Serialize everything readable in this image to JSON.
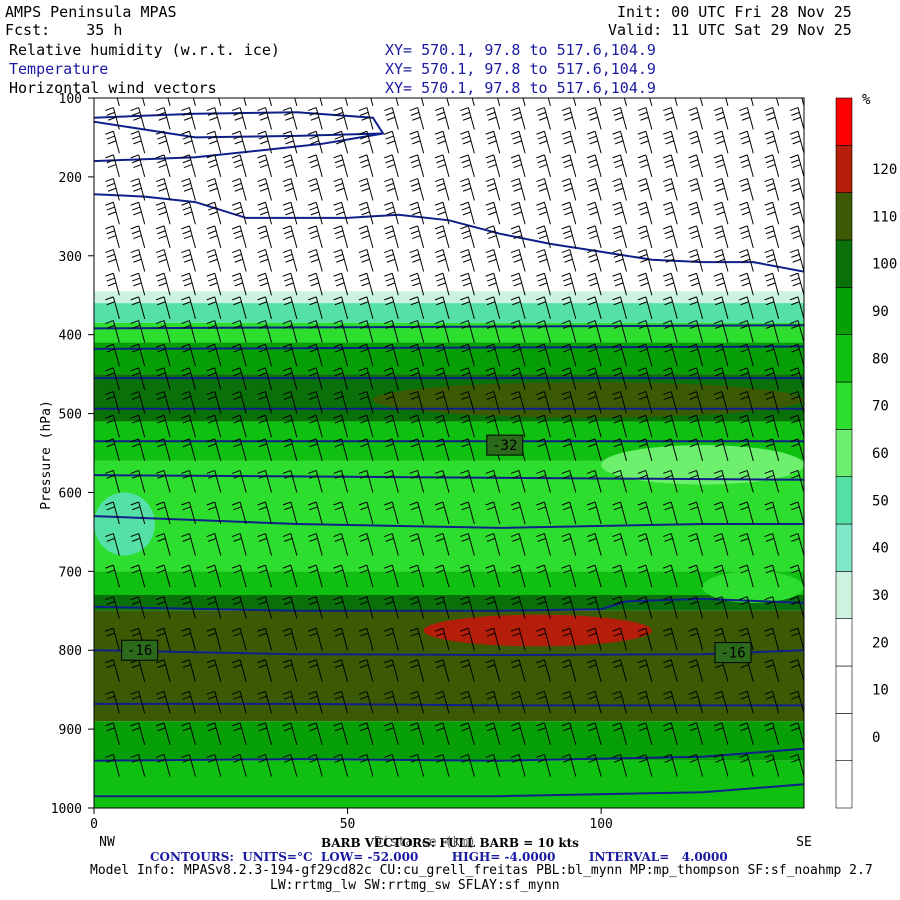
{
  "header": {
    "model_name": "AMPS Peninsula MPAS",
    "fcst": "Fcst:    35 h",
    "init": "Init: 00 UTC Fri 28 Nov 25",
    "valid": "Valid: 11 UTC Sat 29 Nov 25",
    "fields": [
      {
        "name": "Relative humidity (w.r.t. ice)",
        "xy": "XY= 570.1, 97.8 to 517.6,104.9"
      },
      {
        "name": "Temperature",
        "xy": "XY= 570.1, 97.8 to 517.6,104.9"
      },
      {
        "name": "Horizontal wind vectors",
        "xy": "XY= 570.1, 97.8 to 517.6,104.9"
      }
    ]
  },
  "colors": {
    "contour": "#10208a",
    "rh_levels": [
      "#ffffff",
      "#ffffff",
      "#ffffff",
      "#ffffff",
      "#ccf2e0",
      "#7ee8c8",
      "#55e0a8",
      "#6ef06e",
      "#2ede2e",
      "#10c010",
      "#06a006",
      "#0a700a",
      "#3c5a04",
      "#b41e0a",
      "#ff0000"
    ]
  },
  "chart_data": {
    "type": "heatmap",
    "xlabel": "Distance (km)",
    "ylabel": "Pressure (hPa)",
    "xlim": [
      0,
      140
    ],
    "ylim": [
      1000,
      100
    ],
    "x_ticks": [
      0,
      50,
      100
    ],
    "y_ticks": [
      100,
      200,
      300,
      400,
      500,
      600,
      700,
      800,
      900,
      1000
    ],
    "x_end_labels": {
      "left": "NW",
      "right": "SE"
    },
    "colorbar": {
      "unit": "%",
      "labels": [
        0,
        10,
        20,
        30,
        40,
        50,
        60,
        70,
        80,
        90,
        100,
        110,
        120
      ],
      "bounds": [
        -10,
        0,
        10,
        20,
        30,
        40,
        50,
        60,
        70,
        80,
        90,
        100,
        110,
        120,
        130
      ]
    },
    "rh_bands": [
      {
        "p_top": 100,
        "p_bottom": 345,
        "value": 0
      },
      {
        "p_top": 345,
        "p_bottom": 360,
        "value": 35
      },
      {
        "p_top": 360,
        "p_bottom": 385,
        "value": 55
      },
      {
        "p_top": 385,
        "p_bottom": 410,
        "value": 75
      },
      {
        "p_top": 410,
        "p_bottom": 450,
        "value": 95
      },
      {
        "p_top": 450,
        "p_bottom": 510,
        "value": 105
      },
      {
        "p_top": 510,
        "p_bottom": 560,
        "value": 85
      },
      {
        "p_top": 560,
        "p_bottom": 640,
        "value": 75
      },
      {
        "p_top": 640,
        "p_bottom": 700,
        "value": 72
      },
      {
        "p_top": 700,
        "p_bottom": 730,
        "value": 85
      },
      {
        "p_top": 730,
        "p_bottom": 750,
        "value": 105
      },
      {
        "p_top": 750,
        "p_bottom": 890,
        "value": 115
      },
      {
        "p_top": 890,
        "p_bottom": 940,
        "value": 95
      },
      {
        "p_top": 940,
        "p_bottom": 1000,
        "value": 85
      }
    ],
    "rh_patches": [
      {
        "x": [
          55,
          140
        ],
        "p": [
          460,
          505
        ],
        "value": 115
      },
      {
        "x": [
          65,
          110
        ],
        "p": [
          755,
          795
        ],
        "value": 125
      },
      {
        "x": [
          0,
          12
        ],
        "p": [
          600,
          680
        ],
        "value": 55
      },
      {
        "x": [
          100,
          140
        ],
        "p": [
          540,
          590
        ],
        "value": 65
      },
      {
        "x": [
          120,
          140
        ],
        "p": [
          700,
          740
        ],
        "value": 75
      }
    ],
    "temperature_contours": [
      {
        "x": [
          0,
          20,
          40,
          55,
          57,
          40,
          20,
          0
        ],
        "p": [
          125,
          120,
          118,
          125,
          145,
          148,
          150,
          130
        ]
      },
      {
        "x": [
          0,
          20,
          35,
          45,
          57
        ],
        "p": [
          180,
          175,
          165,
          158,
          145
        ]
      },
      {
        "x": [
          0,
          10,
          20,
          30,
          40,
          50,
          60,
          70,
          80,
          90,
          100,
          110,
          120,
          130,
          140
        ],
        "p": [
          222,
          225,
          232,
          252,
          252,
          252,
          248,
          255,
          272,
          285,
          295,
          305,
          308,
          308,
          320
        ]
      },
      {
        "x": [
          0,
          140
        ],
        "p": [
          392,
          388
        ]
      },
      {
        "x": [
          0,
          140
        ],
        "p": [
          418,
          415
        ]
      },
      {
        "x": [
          0,
          140
        ],
        "p": [
          455,
          455
        ]
      },
      {
        "x": [
          0,
          140
        ],
        "p": [
          494,
          494
        ]
      },
      {
        "x": [
          0,
          140
        ],
        "p": [
          535,
          535
        ]
      },
      {
        "x": [
          0,
          140
        ],
        "p": [
          578,
          584
        ]
      },
      {
        "x": [
          0,
          40,
          80,
          120,
          140
        ],
        "p": [
          630,
          640,
          645,
          640,
          640
        ]
      },
      {
        "x": [
          0,
          40,
          80,
          100,
          105,
          120,
          140
        ],
        "p": [
          745,
          750,
          750,
          748,
          738,
          735,
          740
        ]
      },
      {
        "x": [
          0,
          40,
          80,
          120,
          140
        ],
        "p": [
          800,
          805,
          806,
          805,
          800
        ]
      },
      {
        "x": [
          0,
          40,
          80,
          120,
          140
        ],
        "p": [
          868,
          868,
          870,
          870,
          870
        ]
      },
      {
        "x": [
          0,
          40,
          80,
          120,
          140
        ],
        "p": [
          940,
          938,
          940,
          935,
          925
        ]
      },
      {
        "x": [
          0,
          40,
          80,
          120,
          140
        ],
        "p": [
          985,
          985,
          985,
          980,
          970
        ]
      }
    ],
    "contour_labels": [
      {
        "text": "-32",
        "x": 81,
        "p": 540
      },
      {
        "text": "-16",
        "x": 9,
        "p": 800
      },
      {
        "text": "-16",
        "x": 126,
        "p": 803
      }
    ],
    "wind_barb_columns": {
      "x_start": 5,
      "x_step": 5,
      "count": 28,
      "p_levels": [
        110,
        140,
        170,
        200,
        230,
        260,
        290,
        320,
        350,
        380,
        410,
        440,
        470,
        500,
        530,
        560,
        600,
        640,
        680,
        720,
        760,
        800,
        840,
        880,
        920,
        960
      ]
    }
  },
  "footer": {
    "barb": "BARB VECTORS: FULL BARB = 10 kts",
    "contours": "CONTOURS:  UNITS=°C  LOW= -52.000        HIGH= -4.0000        INTERVAL=   4.0000",
    "model_info_1": "Model Info: MPASv8.2.3-194-gf29cd82c CU:cu_grell_freitas PBL:bl_mynn MP:mp_thompson SF:sf_noahmp 2.7",
    "model_info_2": "LW:rrtmg_lw SW:rrtmg_sw SFLAY:sf_mynn"
  }
}
